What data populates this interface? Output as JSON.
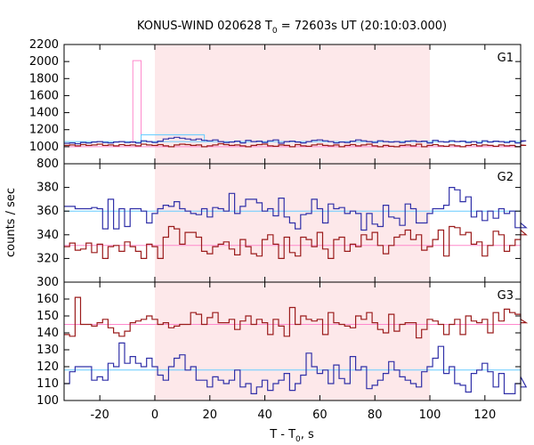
{
  "chart_data": {
    "type": "line",
    "title_main": "KONUS-WIND 020628 T",
    "title_sub": "0",
    "title_rest": " = 72603s UT (20:10:03.000)",
    "xlabel_main": "T - T",
    "xlabel_sub": "0",
    "xlabel_rest": ", s",
    "ylabel": "counts / sec",
    "xlim": [
      -33,
      133
    ],
    "xticks": [
      -20,
      0,
      20,
      40,
      60,
      80,
      100,
      120
    ],
    "interval": [
      0,
      100
    ],
    "colors": {
      "red_series": "#9b1c1c",
      "blue_series": "#3030a8",
      "red_level": "#ff88cc",
      "blue_level": "#66ccff",
      "interval": "#fde8ea",
      "spike": "#ff88cc"
    },
    "panels": [
      {
        "label": "G1",
        "ylim": [
          800,
          2200
        ],
        "yticks": [
          800,
          1000,
          1200,
          1400,
          1600,
          1800,
          2000,
          2200
        ],
        "red_level": 1000,
        "blue_level": 1060,
        "spike": {
          "x0": -8,
          "x1": -5,
          "y": 2010
        },
        "box": {
          "x0": -5,
          "x1": 18,
          "y": 1140
        },
        "bin": 2,
        "blue": [
          1040,
          1045,
          1035,
          1050,
          1045,
          1055,
          1060,
          1050,
          1045,
          1055,
          1060,
          1050,
          1055,
          1045,
          1070,
          1060,
          1050,
          1065,
          1090,
          1100,
          1110,
          1100,
          1090,
          1080,
          1090,
          1075,
          1070,
          1080,
          1060,
          1050,
          1055,
          1065,
          1045,
          1075,
          1060,
          1065,
          1050,
          1070,
          1080,
          1040,
          1060,
          1065,
          1055,
          1045,
          1060,
          1075,
          1080,
          1070,
          1060,
          1045,
          1055,
          1050,
          1065,
          1080,
          1070,
          1060,
          1050,
          1070,
          1060,
          1055,
          1060,
          1050,
          1065,
          1070,
          1060,
          1065,
          1045,
          1075,
          1060,
          1055,
          1070,
          1060,
          1065,
          1050,
          1060,
          1045,
          1070,
          1055,
          1065,
          1060,
          1050,
          1065,
          1045,
          1060,
          1070
        ],
        "red": [
          1015,
          1020,
          1010,
          1025,
          1015,
          1020,
          1030,
          1015,
          1020,
          1010,
          1025,
          1015,
          1020,
          1010,
          1030,
          1020,
          1015,
          1025,
          1010,
          1000,
          1020,
          1030,
          1025,
          1015,
          1020,
          1000,
          1010,
          1020,
          1035,
          1025,
          1015,
          1020,
          1010,
          1000,
          1015,
          1025,
          1030,
          1010,
          1005,
          1020,
          1015,
          1000,
          1025,
          1010,
          1005,
          1020,
          1030,
          1015,
          1010,
          1020,
          1000,
          1015,
          1025,
          1010,
          1020,
          1030,
          1010,
          1000,
          1015,
          1005,
          1000,
          1015,
          1020,
          1010,
          1030,
          1000,
          1015,
          1025,
          1010,
          1005,
          1020,
          1010,
          1000,
          1015,
          1025,
          1010,
          1020,
          1015,
          1005,
          1020,
          1010,
          1015,
          1000,
          1020,
          1015
        ]
      },
      {
        "label": "G2",
        "ylim": [
          300,
          400
        ],
        "yticks": [
          300,
          320,
          340,
          360,
          380
        ],
        "red_level": 331,
        "blue_level": 360,
        "bin": 2,
        "blue": [
          364,
          364,
          362,
          362,
          362,
          363,
          362,
          345,
          370,
          345,
          362,
          347,
          362,
          362,
          360,
          350,
          358,
          362,
          365,
          364,
          368,
          362,
          360,
          358,
          357,
          362,
          355,
          363,
          362,
          360,
          375,
          358,
          364,
          370,
          370,
          367,
          360,
          362,
          356,
          371,
          355,
          350,
          345,
          357,
          358,
          370,
          362,
          350,
          366,
          362,
          363,
          358,
          360,
          358,
          344,
          358,
          349,
          347,
          365,
          355,
          354,
          348,
          366,
          362,
          350,
          350,
          358,
          362,
          362,
          365,
          380,
          378,
          368,
          372,
          355,
          360,
          352,
          360,
          354,
          362,
          358,
          360,
          346,
          350,
          346
        ],
        "red": [
          330,
          333,
          327,
          328,
          333,
          325,
          332,
          320,
          330,
          331,
          326,
          334,
          330,
          326,
          320,
          332,
          330,
          320,
          338,
          347,
          345,
          332,
          342,
          342,
          338,
          326,
          324,
          330,
          332,
          334,
          328,
          323,
          336,
          330,
          324,
          322,
          336,
          340,
          332,
          320,
          338,
          325,
          322,
          338,
          336,
          330,
          342,
          328,
          320,
          336,
          338,
          326,
          332,
          330,
          340,
          336,
          342,
          331,
          324,
          331,
          338,
          340,
          344,
          336,
          340,
          327,
          330,
          336,
          344,
          322,
          347,
          346,
          340,
          342,
          332,
          334,
          322,
          331,
          343,
          340,
          326,
          331,
          336,
          344,
          340
        ]
      },
      {
        "label": "G3",
        "ylim": [
          100,
          170
        ],
        "yticks": [
          100,
          110,
          120,
          130,
          140,
          150,
          160
        ],
        "red_level": 145,
        "blue_level": 118,
        "bin": 2,
        "blue": [
          110,
          117,
          120,
          120,
          120,
          112,
          114,
          112,
          122,
          120,
          134,
          122,
          126,
          122,
          120,
          125,
          120,
          115,
          112,
          120,
          125,
          127,
          118,
          120,
          112,
          112,
          108,
          114,
          112,
          110,
          112,
          118,
          108,
          110,
          104,
          108,
          112,
          106,
          110,
          112,
          116,
          106,
          110,
          115,
          128,
          120,
          116,
          118,
          110,
          121,
          113,
          110,
          126,
          118,
          120,
          107,
          109,
          112,
          116,
          123,
          118,
          114,
          112,
          110,
          108,
          117,
          120,
          125,
          132,
          116,
          120,
          110,
          109,
          105,
          116,
          118,
          122,
          117,
          108,
          116,
          104,
          104,
          110,
          114,
          108
        ],
        "red": [
          139,
          138,
          161,
          145,
          145,
          144,
          146,
          148,
          143,
          140,
          138,
          141,
          146,
          147,
          148,
          150,
          148,
          145,
          146,
          143,
          144,
          145,
          145,
          152,
          151,
          145,
          149,
          152,
          146,
          146,
          148,
          142,
          147,
          150,
          145,
          148,
          146,
          139,
          148,
          144,
          138,
          155,
          145,
          150,
          148,
          147,
          148,
          139,
          152,
          146,
          145,
          144,
          143,
          150,
          148,
          152,
          146,
          142,
          140,
          151,
          141,
          145,
          146,
          146,
          137,
          142,
          148,
          147,
          145,
          139,
          145,
          148,
          139,
          150,
          147,
          146,
          148,
          140,
          152,
          147,
          154,
          152,
          151,
          148,
          146
        ]
      }
    ]
  }
}
